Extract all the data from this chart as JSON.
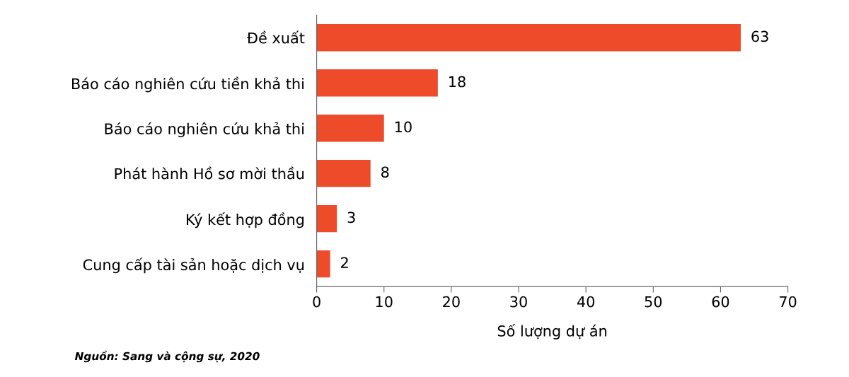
{
  "chart_data": {
    "type": "bar",
    "orientation": "horizontal",
    "categories": [
      "Đề xuất",
      "Báo cáo nghiên cứu tiền khả thi",
      "Báo cáo nghiên cứu khả thi",
      "Phát hành Hồ sơ mời thầu",
      "Ký kết hợp đồng",
      "Cung cấp tài sản hoặc dịch vụ"
    ],
    "values": [
      63,
      18,
      10,
      8,
      3,
      2
    ],
    "color": "#ee4b2b",
    "data_labels": true,
    "xlim": [
      0,
      70
    ],
    "xticks": [
      0,
      10,
      20,
      30,
      40,
      50,
      60,
      70
    ],
    "xlabel": "Số lượng dự án",
    "grid": false,
    "annotations": [
      "Nguồn: Sang và cộng sự, 2020"
    ]
  }
}
